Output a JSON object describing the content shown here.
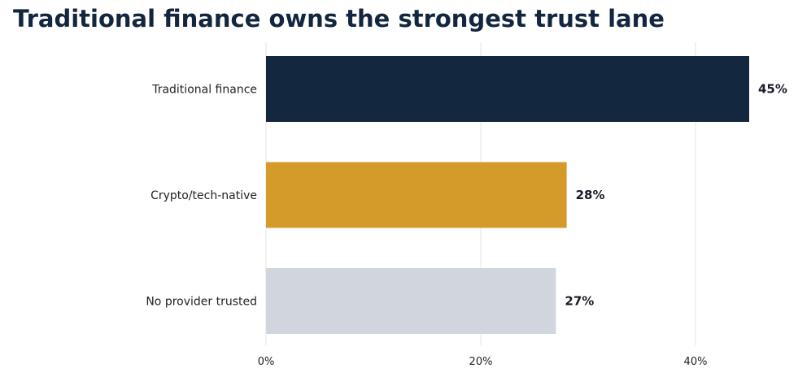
{
  "chart_data": {
    "type": "bar",
    "orientation": "horizontal",
    "title": "Traditional finance owns the strongest trust lane",
    "categories": [
      "Traditional finance",
      "Crypto/tech-native",
      "No provider trusted"
    ],
    "values": [
      45,
      28,
      27
    ],
    "data_labels": [
      "45%",
      "28%",
      "27%"
    ],
    "bar_colors": [
      "#13273f",
      "#d49b2a",
      "#d0d5de"
    ],
    "xlim": [
      0,
      50
    ],
    "xticks": [
      0,
      20,
      40
    ],
    "xtick_labels": [
      "0%",
      "20%",
      "40%"
    ],
    "grid": "vertical",
    "xlabel": "",
    "ylabel": ""
  }
}
